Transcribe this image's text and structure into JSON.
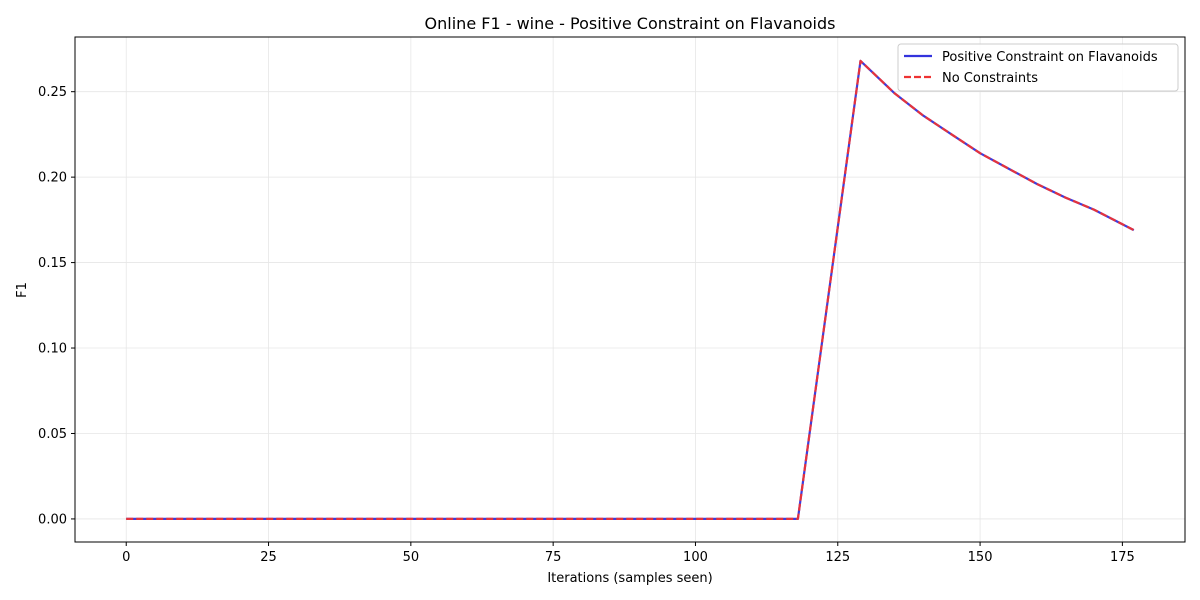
{
  "chart_data": {
    "type": "line",
    "title": "Online F1 - wine - Positive Constraint on Flavanoids",
    "xlabel": "Iterations (samples seen)",
    "ylabel": "F1",
    "xlim": [
      -9,
      186
    ],
    "ylim": [
      -0.0135,
      0.282
    ],
    "x_ticks": [
      0,
      25,
      50,
      75,
      100,
      125,
      150,
      175
    ],
    "y_ticks": [
      0.0,
      0.05,
      0.1,
      0.15,
      0.2,
      0.25
    ],
    "x_tick_labels": [
      "0",
      "25",
      "50",
      "75",
      "100",
      "125",
      "150",
      "175"
    ],
    "y_tick_labels": [
      "0.00",
      "0.05",
      "0.10",
      "0.15",
      "0.20",
      "0.25"
    ],
    "grid": true,
    "legend_position": "top-right",
    "series": [
      {
        "name": "Positive Constraint on Flavanoids",
        "color": "#3333dd",
        "style": "solid",
        "x": [
          0,
          118,
          129,
          135,
          140,
          145,
          150,
          155,
          160,
          165,
          170,
          177
        ],
        "y": [
          0.0,
          0.0,
          0.268,
          0.249,
          0.236,
          0.225,
          0.214,
          0.205,
          0.196,
          0.188,
          0.181,
          0.169
        ]
      },
      {
        "name": "No Constraints",
        "color": "#ee3333",
        "style": "dashed",
        "x": [
          0,
          118,
          129,
          135,
          140,
          145,
          150,
          155,
          160,
          165,
          170,
          177
        ],
        "y": [
          0.0,
          0.0,
          0.268,
          0.249,
          0.236,
          0.225,
          0.214,
          0.205,
          0.196,
          0.188,
          0.181,
          0.169
        ]
      }
    ]
  }
}
